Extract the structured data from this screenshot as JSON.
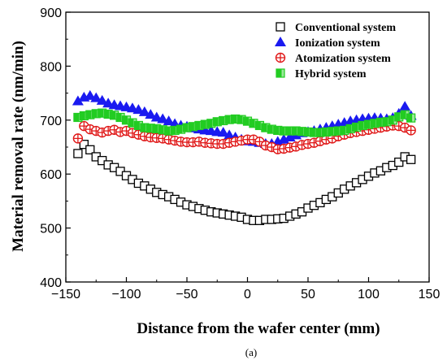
{
  "chart_data": {
    "type": "scatter",
    "xlabel": "Distance from the wafer center (mm)",
    "ylabel": "Material removal rate (nm/min)",
    "panel_label": "(a)",
    "xlim": [
      -150,
      150
    ],
    "ylim": [
      400,
      900
    ],
    "xticks": [
      -150,
      -100,
      -50,
      0,
      50,
      100,
      150
    ],
    "yticks": [
      400,
      500,
      600,
      700,
      800,
      900
    ],
    "xtick_labels": [
      "−150",
      "−100",
      "−50",
      "0",
      "50",
      "100",
      "150"
    ],
    "ytick_labels": [
      "400",
      "500",
      "600",
      "700",
      "800",
      "900"
    ],
    "legend_position": "top-right",
    "series": [
      {
        "name": "Conventional system",
        "marker": "open-square",
        "color": "#000000",
        "x": [
          -140,
          -135,
          -130,
          -125,
          -120,
          -115,
          -110,
          -105,
          -100,
          -95,
          -90,
          -85,
          -80,
          -75,
          -70,
          -65,
          -60,
          -55,
          -50,
          -45,
          -40,
          -35,
          -30,
          -25,
          -20,
          -15,
          -10,
          -5,
          0,
          5,
          10,
          15,
          20,
          25,
          30,
          35,
          40,
          45,
          50,
          55,
          60,
          65,
          70,
          75,
          80,
          85,
          90,
          95,
          100,
          105,
          110,
          115,
          120,
          125,
          130,
          135
        ],
        "y": [
          638,
          655,
          645,
          632,
          625,
          617,
          612,
          605,
          597,
          590,
          583,
          578,
          572,
          566,
          562,
          558,
          553,
          548,
          543,
          540,
          536,
          533,
          530,
          528,
          526,
          524,
          522,
          520,
          516,
          514,
          514,
          516,
          516,
          517,
          518,
          522,
          526,
          530,
          537,
          542,
          547,
          553,
          558,
          565,
          572,
          578,
          584,
          590,
          596,
          602,
          606,
          612,
          616,
          622,
          632,
          627
        ]
      },
      {
        "name": "Ionization system",
        "marker": "filled-triangle",
        "color": "#1a1af0",
        "x": [
          -140,
          -135,
          -130,
          -125,
          -120,
          -115,
          -110,
          -105,
          -100,
          -95,
          -90,
          -85,
          -80,
          -75,
          -70,
          -65,
          -60,
          -55,
          -50,
          -45,
          -40,
          -35,
          -30,
          -25,
          -20,
          -15,
          -10,
          -5,
          0,
          5,
          10,
          15,
          20,
          25,
          30,
          35,
          40,
          45,
          50,
          55,
          60,
          65,
          70,
          75,
          80,
          85,
          90,
          95,
          100,
          105,
          110,
          115,
          120,
          125,
          130,
          135
        ],
        "y": [
          735,
          742,
          745,
          741,
          736,
          731,
          728,
          726,
          724,
          722,
          719,
          715,
          710,
          705,
          702,
          698,
          693,
          690,
          688,
          685,
          683,
          681,
          680,
          678,
          677,
          672,
          668,
          664,
          661,
          660,
          658,
          656,
          656,
          660,
          664,
          668,
          672,
          676,
          678,
          680,
          683,
          686,
          689,
          692,
          695,
          698,
          700,
          702,
          703,
          704,
          703,
          702,
          704,
          712,
          725,
          708
        ]
      },
      {
        "name": "Atomization system",
        "marker": "circle-plus",
        "color": "#e01818",
        "x": [
          -140,
          -135,
          -130,
          -125,
          -120,
          -115,
          -110,
          -105,
          -100,
          -95,
          -90,
          -85,
          -80,
          -75,
          -70,
          -65,
          -60,
          -55,
          -50,
          -45,
          -40,
          -35,
          -30,
          -25,
          -20,
          -15,
          -10,
          -5,
          0,
          5,
          10,
          15,
          20,
          25,
          30,
          35,
          40,
          45,
          50,
          55,
          60,
          65,
          70,
          75,
          80,
          85,
          90,
          95,
          100,
          105,
          110,
          115,
          120,
          125,
          130,
          135
        ],
        "y": [
          666,
          689,
          683,
          680,
          677,
          680,
          682,
          678,
          680,
          676,
          673,
          670,
          668,
          667,
          666,
          664,
          662,
          660,
          659,
          659,
          660,
          658,
          657,
          656,
          656,
          658,
          660,
          662,
          664,
          664,
          660,
          653,
          650,
          646,
          647,
          649,
          651,
          654,
          656,
          658,
          661,
          664,
          666,
          670,
          673,
          676,
          678,
          680,
          682,
          684,
          686,
          688,
          690,
          689,
          686,
          681
        ]
      },
      {
        "name": "Hybrid system",
        "marker": "half-square",
        "color": "#22cc22",
        "x": [
          -140,
          -135,
          -130,
          -125,
          -120,
          -115,
          -110,
          -105,
          -100,
          -95,
          -90,
          -85,
          -80,
          -75,
          -70,
          -65,
          -60,
          -55,
          -50,
          -45,
          -40,
          -35,
          -30,
          -25,
          -20,
          -15,
          -10,
          -5,
          0,
          5,
          10,
          15,
          20,
          25,
          30,
          35,
          40,
          45,
          50,
          55,
          60,
          65,
          70,
          75,
          80,
          85,
          90,
          95,
          100,
          105,
          110,
          115,
          120,
          125,
          130,
          135
        ],
        "y": [
          705,
          708,
          710,
          712,
          713,
          711,
          709,
          705,
          700,
          695,
          690,
          686,
          685,
          684,
          682,
          680,
          681,
          683,
          686,
          688,
          690,
          692,
          694,
          697,
          699,
          701,
          702,
          701,
          698,
          694,
          690,
          686,
          683,
          681,
          680,
          680,
          680,
          679,
          678,
          677,
          677,
          678,
          679,
          680,
          681,
          684,
          687,
          690,
          692,
          694,
          696,
          697,
          700,
          706,
          710,
          704
        ]
      }
    ]
  }
}
